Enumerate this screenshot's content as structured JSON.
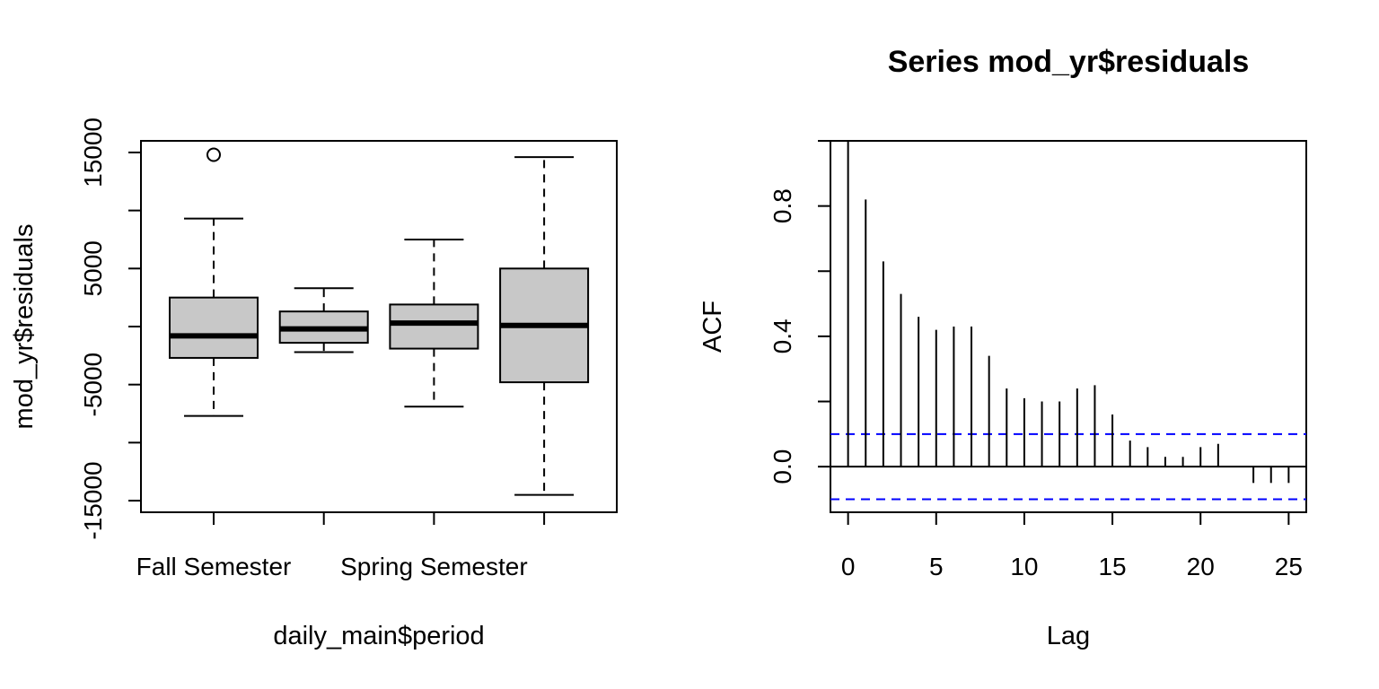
{
  "chart_data": [
    {
      "type": "boxplot",
      "title": "",
      "xlabel": "daily_main$period",
      "ylabel": "mod_yr$residuals",
      "ylim": [
        -16000,
        16000
      ],
      "yticks": [
        -15000,
        -10000,
        -5000,
        0,
        5000,
        10000,
        15000
      ],
      "ytick_labels": [
        "-15000",
        "",
        "-5000",
        "",
        "5000",
        "",
        "15000"
      ],
      "categories": [
        "Fall Semester",
        "",
        "Spring Semester",
        ""
      ],
      "boxes": [
        {
          "whisker_low": -7700,
          "q1": -2700,
          "median": -800,
          "q3": 2500,
          "whisker_high": 9300,
          "outliers": [
            14800
          ]
        },
        {
          "whisker_low": -2200,
          "q1": -1400,
          "median": -200,
          "q3": 1300,
          "whisker_high": 3300,
          "outliers": []
        },
        {
          "whisker_low": -6900,
          "q1": -1900,
          "median": 300,
          "q3": 1900,
          "whisker_high": 7500,
          "outliers": []
        },
        {
          "whisker_low": -14500,
          "q1": -4800,
          "median": 100,
          "q3": 5000,
          "whisker_high": 14600,
          "outliers": []
        }
      ],
      "box_fill": "#c8c8c8",
      "grid": false
    },
    {
      "type": "acf",
      "title": "Series  mod_yr$residuals",
      "xlabel": "Lag",
      "ylabel": "ACF",
      "xlim": [
        -1,
        26
      ],
      "ylim": [
        -0.14,
        1.0
      ],
      "xticks": [
        0,
        5,
        10,
        15,
        20,
        25
      ],
      "yticks": [
        0.0,
        0.2,
        0.4,
        0.6,
        0.8,
        1.0
      ],
      "ytick_labels": [
        "0.0",
        "",
        "0.4",
        "",
        "0.8",
        ""
      ],
      "lags": [
        0,
        1,
        2,
        3,
        4,
        5,
        6,
        7,
        8,
        9,
        10,
        11,
        12,
        13,
        14,
        15,
        16,
        17,
        18,
        19,
        20,
        21,
        22,
        23,
        24,
        25
      ],
      "values": [
        1.0,
        0.82,
        0.63,
        0.53,
        0.46,
        0.42,
        0.43,
        0.43,
        0.34,
        0.24,
        0.21,
        0.2,
        0.2,
        0.24,
        0.25,
        0.16,
        0.08,
        0.06,
        0.03,
        0.03,
        0.06,
        0.07,
        0.0,
        -0.05,
        -0.05,
        -0.05
      ],
      "ci": 0.1,
      "ci_color": "#0000ff",
      "grid": false
    }
  ]
}
